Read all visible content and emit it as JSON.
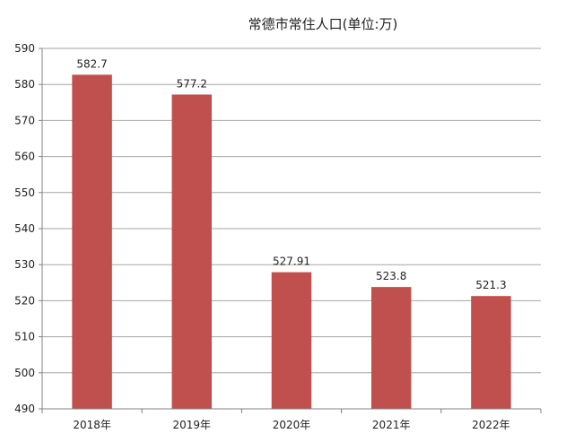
{
  "chart_data": {
    "type": "bar",
    "title": "常德市常住人口(单位:万)",
    "categories": [
      "2018年",
      "2019年",
      "2020年",
      "2021年",
      "2022年"
    ],
    "series": [
      {
        "values": [
          582.7,
          577.2,
          527.91,
          523.8,
          521.3
        ],
        "labels": [
          "582.7",
          "577.2",
          "527.91",
          "523.8",
          "521.3"
        ]
      }
    ],
    "xlabel": "",
    "ylabel": "",
    "ylim": [
      490,
      590
    ],
    "yticks": [
      490,
      500,
      510,
      520,
      530,
      540,
      550,
      560,
      570,
      580,
      590
    ],
    "grid": true,
    "legend": "none",
    "colors": {
      "bar": "#c0504d",
      "grid": "#a6a6a6",
      "axis": "#808080",
      "text": "#222222"
    }
  }
}
